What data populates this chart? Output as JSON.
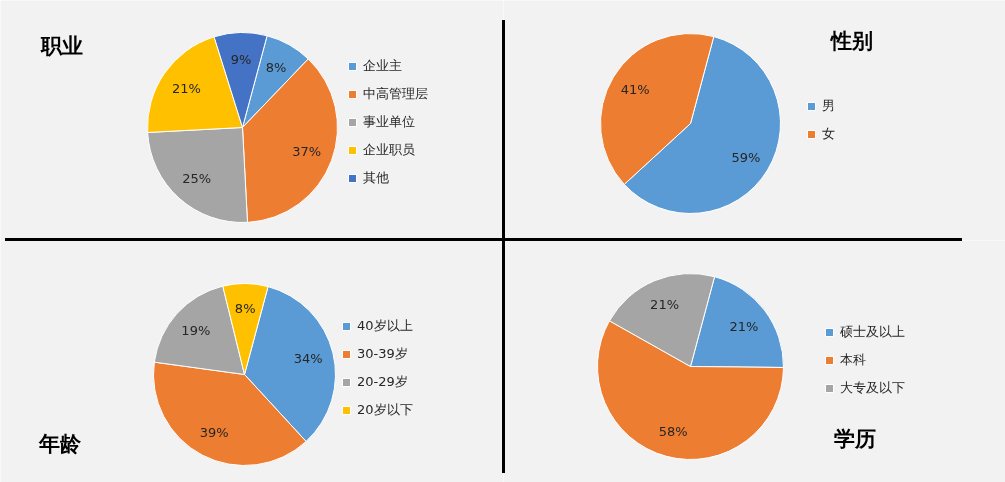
{
  "chart_data": [
    {
      "type": "pie",
      "title": "职业",
      "categories": [
        "企业主",
        "中高管理层",
        "事业单位",
        "企业职员",
        "其他"
      ],
      "values": [
        8,
        37,
        25,
        21,
        9
      ],
      "value_labels": [
        "8%",
        "37%",
        "25%",
        "21%",
        "9%"
      ],
      "colors": [
        "#5b9bd5",
        "#ed7d31",
        "#a5a5a5",
        "#ffc000",
        "#4472c4"
      ],
      "legend": "right"
    },
    {
      "type": "pie",
      "title": "性别",
      "categories": [
        "男",
        "女"
      ],
      "values": [
        59,
        41
      ],
      "value_labels": [
        "59%",
        "41%"
      ],
      "colors": [
        "#5b9bd5",
        "#ed7d31"
      ],
      "legend": "right"
    },
    {
      "type": "pie",
      "title": "年龄",
      "categories": [
        "40岁以上",
        "30-39岁",
        "20-29岁",
        "20岁以下"
      ],
      "values": [
        34,
        39,
        19,
        8
      ],
      "value_labels": [
        "34%",
        "39%",
        "19%",
        "8%"
      ],
      "colors": [
        "#5b9bd5",
        "#ed7d31",
        "#a5a5a5",
        "#ffc000"
      ],
      "legend": "right"
    },
    {
      "type": "pie",
      "title": "学历",
      "categories": [
        "硕士及以上",
        "本科",
        "大专及以下"
      ],
      "values": [
        21,
        58,
        21
      ],
      "value_labels": [
        "21%",
        "58%",
        "21%"
      ],
      "colors": [
        "#5b9bd5",
        "#ed7d31",
        "#a5a5a5"
      ],
      "legend": "right"
    }
  ]
}
